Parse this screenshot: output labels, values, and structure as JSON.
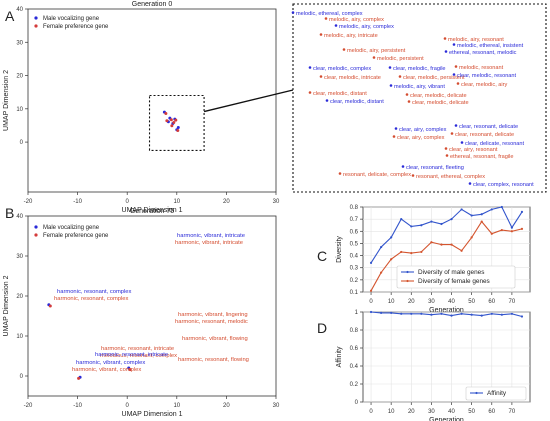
{
  "panel_letters": [
    "A",
    "B",
    "C",
    "D"
  ],
  "chart_data": [
    {
      "type": "scatter",
      "panel": "A",
      "title": "Generation 0",
      "xlabel": "UMAP Dimension 1",
      "ylabel": "UMAP Dimension 2",
      "xlim": [
        -20,
        30
      ],
      "ylim": [
        -15,
        40
      ],
      "xticks": [
        -20,
        -10,
        0,
        10,
        20,
        30
      ],
      "yticks": [
        0,
        10,
        20,
        30,
        40
      ],
      "legend": "top-left",
      "legend_entries": [
        "Male vocalizing gene",
        "Female preference gene"
      ],
      "series": [
        {
          "name": "Male vocalizing gene",
          "color": "#2a2ad8",
          "points": [
            [
              7.5,
              9.0
            ],
            [
              8.6,
              7.2
            ],
            [
              9.2,
              5.6
            ],
            [
              10.0,
              3.7
            ],
            [
              8.3,
              6.1
            ],
            [
              9.6,
              6.9
            ],
            [
              10.3,
              4.4
            ]
          ]
        },
        {
          "name": "Female preference gene",
          "color": "#d43b3b",
          "points": [
            [
              7.8,
              8.6
            ],
            [
              8.9,
              6.7
            ],
            [
              9.4,
              5.9
            ],
            [
              10.2,
              3.5
            ],
            [
              8.0,
              6.4
            ],
            [
              9.8,
              6.6
            ],
            [
              9.0,
              4.9
            ]
          ]
        }
      ],
      "inset_labels": [
        {
          "text": "melodic, ethereal, complex",
          "color": "#2a2ad8"
        },
        {
          "text": "melodic, airy, complex",
          "color": "#d44c2f"
        },
        {
          "text": "melodic, airy, complex",
          "color": "#2a2ad8"
        },
        {
          "text": "melodic, airy, intricate",
          "color": "#d44c2f"
        },
        {
          "text": "melodic, airy, persistent",
          "color": "#d44c2f"
        },
        {
          "text": "melodic, airy, resonant",
          "color": "#d44c2f"
        },
        {
          "text": "melodic, ethereal, insistent",
          "color": "#2a2ad8"
        },
        {
          "text": "ethereal, resonant, melodic",
          "color": "#2a2ad8"
        },
        {
          "text": "melodic, persistent",
          "color": "#d44c2f"
        },
        {
          "text": "clear, melodic, complex",
          "color": "#2a2ad8"
        },
        {
          "text": "clear, melodic, fragile",
          "color": "#2a2ad8"
        },
        {
          "text": "melodic, resonant",
          "color": "#d44c2f"
        },
        {
          "text": "clear, melodic, intricate",
          "color": "#d44c2f"
        },
        {
          "text": "clear, melodic, persistent",
          "color": "#d44c2f"
        },
        {
          "text": "clear, melodic, resonant",
          "color": "#2a2ad8"
        },
        {
          "text": "melodic, airy, vibrant",
          "color": "#2a2ad8"
        },
        {
          "text": "clear, melodic, airy",
          "color": "#d44c2f"
        },
        {
          "text": "clear, melodic, distant",
          "color": "#d44c2f"
        },
        {
          "text": "clear, melodic, delicate",
          "color": "#d44c2f"
        },
        {
          "text": "clear, melodic, distant",
          "color": "#2a2ad8"
        },
        {
          "text": "clear, melodic, delicate",
          "color": "#d44c2f"
        },
        {
          "text": "clear, airy, complex",
          "color": "#2a2ad8"
        },
        {
          "text": "clear, airy, complex",
          "color": "#d44c2f"
        },
        {
          "text": "clear, resonant, delicate",
          "color": "#2a2ad8"
        },
        {
          "text": "clear, resonant, delicate",
          "color": "#d44c2f"
        },
        {
          "text": "clear, delicate, resonant",
          "color": "#2a2ad8"
        },
        {
          "text": "clear, airy, resonant",
          "color": "#d44c2f"
        },
        {
          "text": "ethereal, resonant, fragile",
          "color": "#d44c2f"
        },
        {
          "text": "clear, resonant, fleeting",
          "color": "#2a2ad8"
        },
        {
          "text": "resonant, delicate, complex",
          "color": "#d44c2f"
        },
        {
          "text": "resonant, ethereal, complex",
          "color": "#d44c2f"
        },
        {
          "text": "clear, complex, resonant",
          "color": "#2a2ad8"
        }
      ]
    },
    {
      "type": "scatter",
      "panel": "B",
      "title": "Generation 75",
      "xlabel": "UMAP Dimension 1",
      "ylabel": "UMAP Dimension 2",
      "xlim": [
        -20,
        30
      ],
      "ylim": [
        -5,
        40
      ],
      "xticks": [
        -20,
        -10,
        0,
        10,
        20,
        30
      ],
      "yticks": [
        0,
        10,
        20,
        30,
        40
      ],
      "legend": "top-left",
      "legend_entries": [
        "Male vocalizing gene",
        "Female preference gene"
      ],
      "series": [
        {
          "name": "Male vocalizing gene",
          "color": "#2a2ad8",
          "points": [
            [
              -15.8,
              17.8
            ],
            [
              -9.5,
              -0.3
            ],
            [
              0.3,
              2.0
            ]
          ]
        },
        {
          "name": "Female preference gene",
          "color": "#d43b3b",
          "points": [
            [
              -15.5,
              17.5
            ],
            [
              -9.8,
              -0.6
            ],
            [
              0.6,
              1.6
            ]
          ]
        }
      ],
      "annotations": [
        {
          "text": "harmonic, vibrant, intricate",
          "color": "#2a2ad8"
        },
        {
          "text": "harmonic, vibrant, intricate",
          "color": "#d44c2f"
        },
        {
          "text": "harmonic, resonant, complex",
          "color": "#2a2ad8"
        },
        {
          "text": "harmonic, resonant, complex",
          "color": "#d44c2f"
        },
        {
          "text": "harmonic, vibrant, lingering",
          "color": "#d44c2f"
        },
        {
          "text": "harmonic, resonant, melodic",
          "color": "#d44c2f"
        },
        {
          "text": "harmonic, vibrant, flowing",
          "color": "#d44c2f"
        },
        {
          "text": "harmonic, resonant, intricate",
          "color": "#d44c2f"
        },
        {
          "text": "melodious, resonant, complex",
          "color": "#d44c2f"
        },
        {
          "text": "harmonic, resonant, intricate",
          "color": "#2a2ad8"
        },
        {
          "text": "harmonic, resonant, flowing",
          "color": "#d44c2f"
        },
        {
          "text": "harmonic, vibrant, complex",
          "color": "#2a2ad8"
        },
        {
          "text": "harmonic, vibrant, complex",
          "color": "#d44c2f"
        }
      ]
    },
    {
      "type": "line",
      "panel": "C",
      "xlabel": "Generation",
      "ylabel": "Diversity",
      "xlim": [
        -4,
        79
      ],
      "ylim": [
        0.1,
        0.8
      ],
      "xticks": [
        0,
        10,
        20,
        30,
        40,
        50,
        60,
        70
      ],
      "yticks": [
        0.1,
        0.2,
        0.3,
        0.4,
        0.5,
        0.6,
        0.7,
        0.8
      ],
      "legend": "lower-right",
      "x": [
        0,
        5,
        10,
        15,
        20,
        25,
        30,
        35,
        40,
        45,
        50,
        55,
        60,
        65,
        70,
        75
      ],
      "series": [
        {
          "name": "Diversity of male genes",
          "color": "#3355cc",
          "values": [
            0.34,
            0.47,
            0.55,
            0.7,
            0.64,
            0.65,
            0.68,
            0.66,
            0.7,
            0.78,
            0.73,
            0.74,
            0.78,
            0.8,
            0.63,
            0.76
          ]
        },
        {
          "name": "Diversity of female genes",
          "color": "#d4552f",
          "values": [
            0.11,
            0.26,
            0.37,
            0.43,
            0.42,
            0.43,
            0.51,
            0.49,
            0.49,
            0.44,
            0.55,
            0.68,
            0.58,
            0.61,
            0.6,
            0.62
          ]
        }
      ]
    },
    {
      "type": "line",
      "panel": "D",
      "xlabel": "Generation",
      "ylabel": "Affinity",
      "xlim": [
        -4,
        79
      ],
      "ylim": [
        0,
        1.0
      ],
      "xticks": [
        0,
        10,
        20,
        30,
        40,
        50,
        60,
        70
      ],
      "yticks": [
        0,
        0.2,
        0.4,
        0.6,
        0.8,
        1.0
      ],
      "legend": "lower-right",
      "x": [
        0,
        5,
        10,
        15,
        20,
        25,
        30,
        35,
        40,
        45,
        50,
        55,
        60,
        65,
        70,
        75
      ],
      "series": [
        {
          "name": "Affinity",
          "color": "#3355cc",
          "values": [
            1.0,
            0.99,
            0.99,
            0.98,
            0.98,
            0.98,
            0.97,
            0.98,
            0.96,
            0.98,
            0.97,
            0.96,
            0.98,
            0.97,
            0.98,
            0.95
          ]
        }
      ]
    }
  ]
}
